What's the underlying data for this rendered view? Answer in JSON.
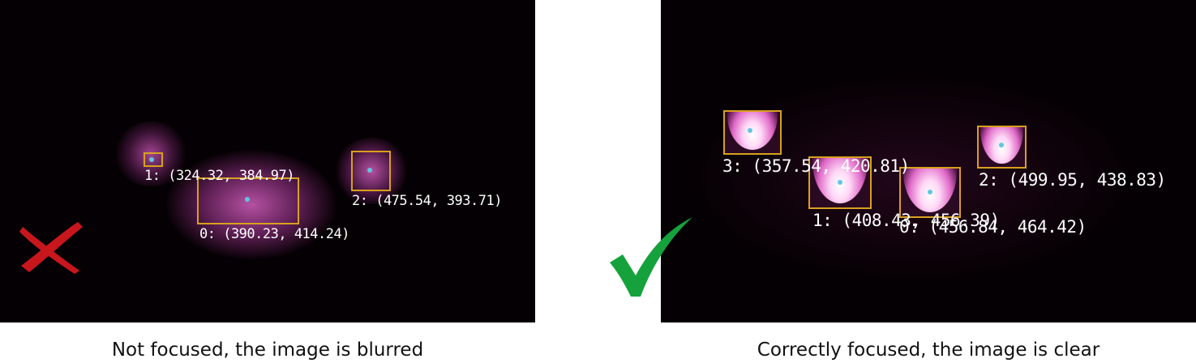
{
  "left_panel": {
    "detections": [
      {
        "id": "1",
        "text": "1: (324.32, 384.97)"
      },
      {
        "id": "0",
        "text": "0: (390.23, 414.24)"
      },
      {
        "id": "2",
        "text": "2: (475.54, 393.71)"
      }
    ],
    "caption": "Not focused, the image is blurred",
    "status_icon": "cross-icon",
    "status_color": "#c8161d"
  },
  "right_panel": {
    "detections": [
      {
        "id": "3",
        "text": "3: (357.54, 420.81)"
      },
      {
        "id": "2",
        "text": "2: (499.95, 438.83)"
      },
      {
        "id": "1",
        "text": "1: (408.43, 456.39)"
      },
      {
        "id": "0",
        "text": "0: (456.84, 464.42)"
      }
    ],
    "caption": "Correctly focused, the image is clear",
    "status_icon": "check-icon",
    "status_color": "#15a23c"
  },
  "colors": {
    "box_outline": "#d9a01e",
    "center_dot": "#5fc7e0",
    "background": "#050003"
  }
}
